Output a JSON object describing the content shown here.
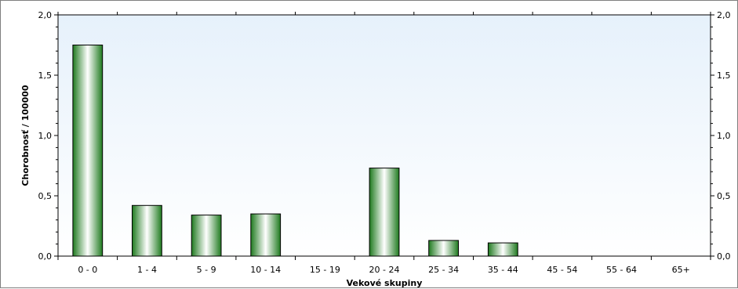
{
  "chart_data": {
    "type": "bar",
    "title": "",
    "xlabel": "Vekové skupiny",
    "ylabel": "Chorobnosť / 100000",
    "ylim": [
      0,
      2.0
    ],
    "yticks": [
      "0,0",
      "0,5",
      "1,0",
      "1,5",
      "2,0"
    ],
    "ytick_values": [
      0,
      0.5,
      1.0,
      1.5,
      2.0
    ],
    "grid": false,
    "categories": [
      "0 - 0",
      "1 - 4",
      "5 - 9",
      "10 - 14",
      "15 - 19",
      "20 - 24",
      "25 - 34",
      "35 - 44",
      "45 - 54",
      "55 - 64",
      "65+"
    ],
    "values": [
      1.75,
      0.42,
      0.34,
      0.35,
      0,
      0.73,
      0.13,
      0.11,
      0,
      0,
      0
    ],
    "bar_color": "#1f7a1f",
    "bar_highlight": "#ffffff",
    "plot_background_top": "#e6f1fb",
    "plot_background_bottom": "#ffffff"
  }
}
